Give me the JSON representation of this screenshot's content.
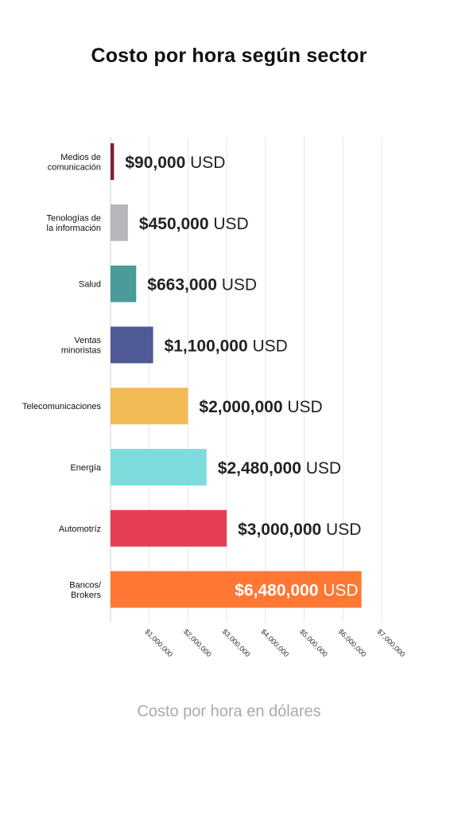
{
  "chart_data": {
    "type": "bar",
    "orientation": "horizontal",
    "title": "Costo por hora según sector",
    "xlabel": "Costo por hora en dólares",
    "ylabel": "",
    "xlim": [
      0,
      7000000
    ],
    "grid": "vertical",
    "categories": [
      [
        "Medios de",
        "comunicación"
      ],
      [
        "Tenologías de",
        "la información"
      ],
      [
        "Salud"
      ],
      [
        "Ventas",
        "minoristas"
      ],
      [
        "Telecomunicaciones"
      ],
      [
        "Energía"
      ],
      [
        "Automotríz"
      ],
      [
        "Bancos/",
        "Brokers"
      ]
    ],
    "values": [
      90000,
      450000,
      663000,
      1100000,
      2000000,
      2480000,
      3000000,
      6480000
    ],
    "value_labels": [
      "$90,000",
      "$450,000",
      "$663,000",
      "$1,100,000",
      "$2,000,000",
      "$2,480,000",
      "$3,000,000",
      "$6,480,000"
    ],
    "value_unit": "USD",
    "colors": [
      "#7a2333",
      "#b6b7bc",
      "#4a9a9a",
      "#4f5a96",
      "#f2bb55",
      "#7edcdc",
      "#e63e55",
      "#ff7733"
    ],
    "ticks": [
      1000000,
      2000000,
      3000000,
      4000000,
      5000000,
      6000000,
      7000000
    ],
    "tick_labels": [
      "$1,000,000",
      "$2,000,000",
      "$3,000,000",
      "$4,000,000",
      "$5,000,000",
      "$6,000,000",
      "$7,000,000"
    ]
  }
}
